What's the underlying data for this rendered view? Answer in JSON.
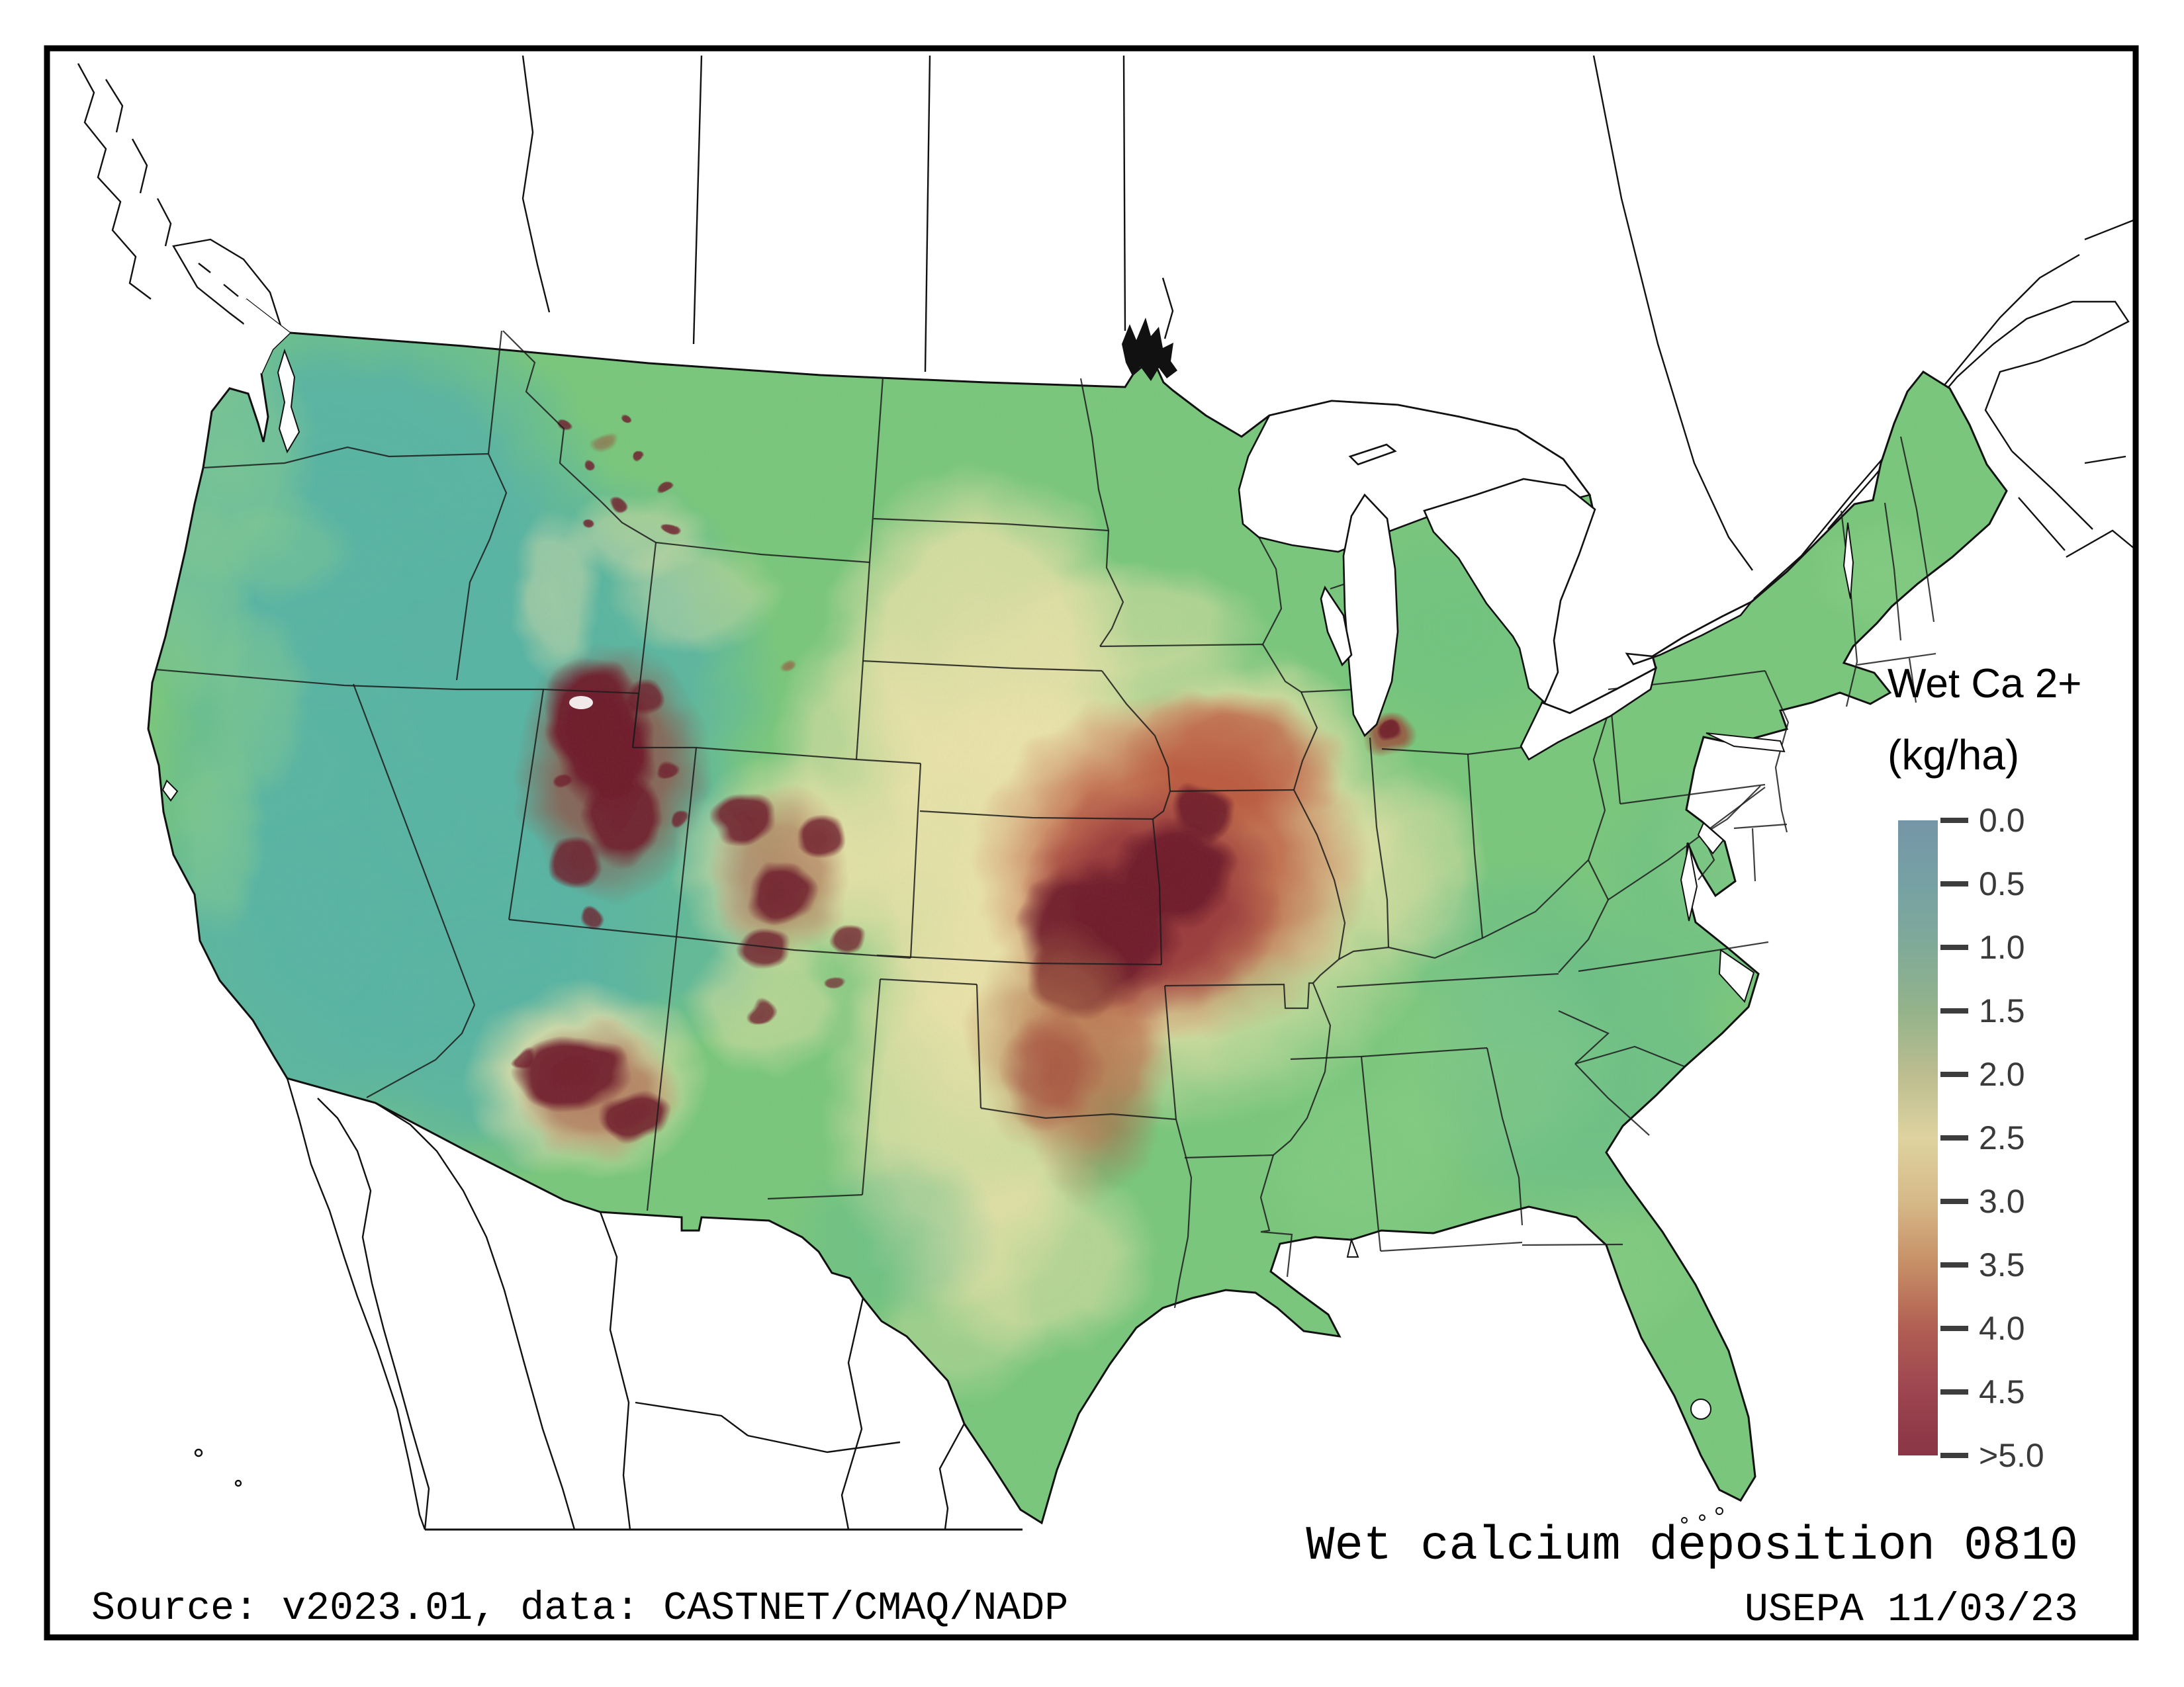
{
  "figure": {
    "legend": {
      "title": "Wet Ca 2+",
      "units": "(kg/ha)",
      "ticks": [
        "0.0",
        "0.5",
        "1.0",
        "1.5",
        "2.0",
        "2.5",
        "3.0",
        "3.5",
        "4.0",
        "4.5",
        ">5.0"
      ],
      "colorbar_colors": [
        "#7596a7",
        "#76a1a4",
        "#80aa98",
        "#94b38a",
        "#bcbd90",
        "#ded3a0",
        "#d6b988",
        "#c68e66",
        "#b15e53",
        "#9c4550",
        "#8a3545"
      ]
    },
    "caption": {
      "title": "Wet calcium deposition 0810",
      "agency_date": "USEPA 11/03/23",
      "source": "Source: v2023.01, data: CASTNET/CMAQ/NADP"
    },
    "map_summary": {
      "type": "raster-deposition-map",
      "region": "Continental United States (Canada and Mexico shown as white outlines)",
      "variable": "Wet Ca 2+ deposition",
      "units": "kg/ha",
      "scale_range": [
        0.0,
        5.0
      ],
      "period_code": "0810",
      "observed_levels": [
        {
          "area": "Pacific West (CA, NV, OR, WA interior)",
          "value_kg_ha": "0.5 - 1.0"
        },
        {
          "area": "Eastern US and Southeast",
          "value_kg_ha": "1.0 - 1.5"
        },
        {
          "area": "Great Plains (ND to TX panhandle)",
          "value_kg_ha": "2.0 - 3.0"
        },
        {
          "area": "Oklahoma / north Texas patch",
          "value_kg_ha": "3.0 - 4.0"
        },
        {
          "area": "Iowa / Missouri / Nebraska / Kansas hotspot",
          "value_kg_ha": ">5.0"
        },
        {
          "area": "Utah Wasatch and Colorado Rockies hotspots",
          "value_kg_ha": ">5.0"
        },
        {
          "area": "Central Arizona hotspot",
          "value_kg_ha": ">5.0"
        },
        {
          "area": "Chicago urban spot",
          "value_kg_ha": "4.0 - 5.0"
        }
      ],
      "map_palette": {
        "low_teal": "#58b4a4",
        "mid_green": "#79c77d",
        "plains_cream": "#ece3ab",
        "elevated_brown": "#b2734c",
        "high_red": "#b85038",
        "extreme_maroon": "#6e1c2b"
      }
    }
  }
}
